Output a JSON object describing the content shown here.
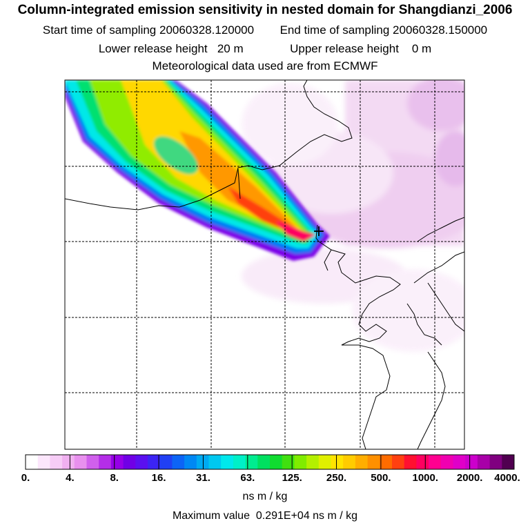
{
  "header": {
    "title": "Column-integrated emission sensitivity in nested domain for Shangdianzi_2006",
    "start_label": "Start time of sampling",
    "start_value": "20060328.120000",
    "end_label": "End time of sampling",
    "end_value": "20060328.150000",
    "lower_label": "Lower release height",
    "lower_value": "20 m",
    "upper_label": "Upper release height",
    "upper_value": "0 m",
    "met_line": "Meteorological data used are from ECMWF"
  },
  "map": {
    "receptor_symbol": "+"
  },
  "colorbar": {
    "tick_labels": [
      "0.",
      "4.",
      "8.",
      "16.",
      "31.",
      "63.",
      "125.",
      "250.",
      "500.",
      "1000.",
      "2000.",
      "4000."
    ],
    "colors": [
      "#ffffff",
      "#fce6fc",
      "#f6ccf6",
      "#f0b0f0",
      "#e890ee",
      "#d060ec",
      "#b42ee8",
      "#9600e8",
      "#7000e6",
      "#5a10f0",
      "#3c24f4",
      "#2040f4",
      "#0c64f6",
      "#0088f4",
      "#00aaf2",
      "#00c8f0",
      "#00e8ec",
      "#00f0c8",
      "#00ec90",
      "#00e060",
      "#10dc30",
      "#40e010",
      "#80ec00",
      "#b4f000",
      "#e0f000",
      "#ffe400",
      "#ffcc00",
      "#ffae00",
      "#ff9000",
      "#ff6c00",
      "#ff4010",
      "#ff1030",
      "#ff0060",
      "#ff0090",
      "#f000b0",
      "#e000c8",
      "#cc00cc",
      "#a800a8",
      "#800080",
      "#500050"
    ],
    "units": "ns m / kg",
    "max_label": "Maximum value",
    "max_value": "0.291E+04 ns m / kg"
  }
}
